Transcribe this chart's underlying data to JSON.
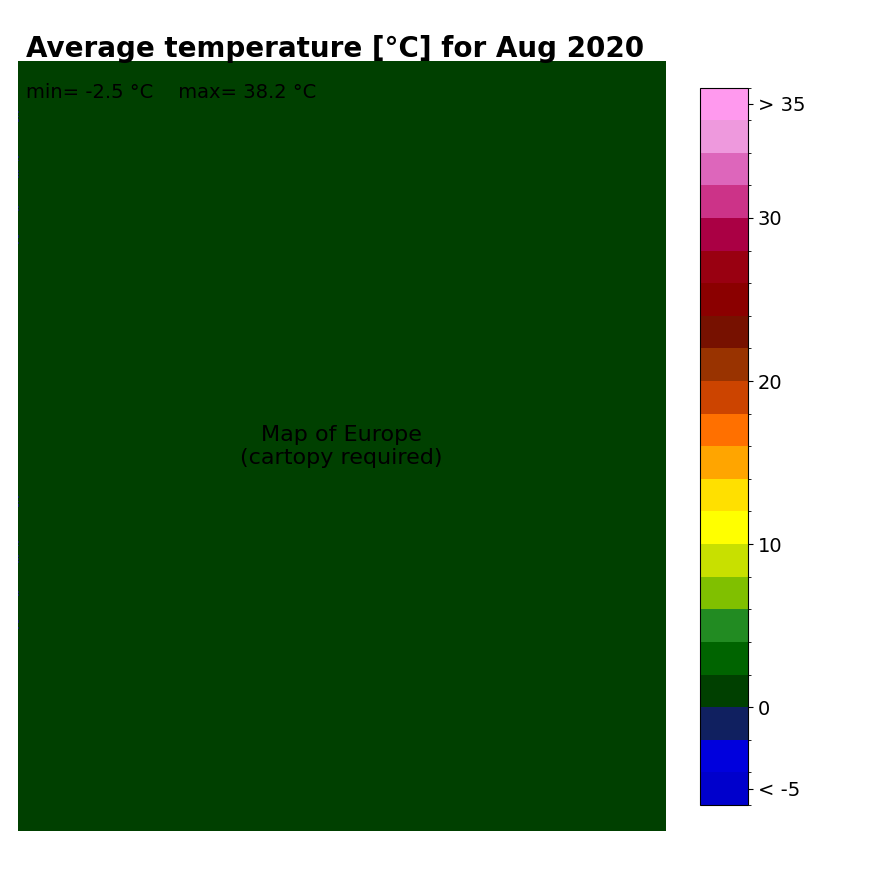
{
  "title": "Average temperature [°C] for Aug 2020",
  "min_label": "min= -2.5 °C",
  "max_label": "max= 38.2 °C",
  "colorbar_ticks": [
    -5,
    0,
    10,
    20,
    30,
    35
  ],
  "colorbar_tick_labels": [
    "< -5",
    "0",
    "10",
    "20",
    "30",
    "> 35"
  ],
  "colorbar_bounds": [
    -6,
    -5,
    -2,
    0,
    2,
    4,
    6,
    8,
    10,
    12,
    14,
    16,
    18,
    20,
    22,
    24,
    26,
    28,
    30,
    32,
    34,
    36
  ],
  "colorbar_colors": [
    "#0000CD",
    "#0000FF",
    "#1E4D8C",
    "#006400",
    "#228B22",
    "#32CD32",
    "#ADFF2F",
    "#FFFF00",
    "#FFD700",
    "#FFA500",
    "#FF8C00",
    "#CD6600",
    "#8B3A00",
    "#6B0000",
    "#8B0000",
    "#A0522D",
    "#C0392B",
    "#CC0044",
    "#CC0088",
    "#DD44AA",
    "#EE88CC"
  ],
  "title_fontsize": 20,
  "label_fontsize": 14,
  "tick_fontsize": 14,
  "background_color": "#FFFFFF",
  "map_image_placeholder": true
}
